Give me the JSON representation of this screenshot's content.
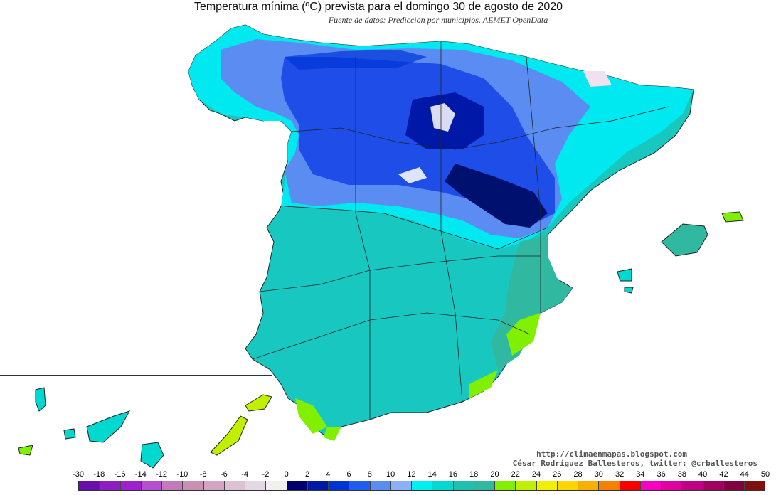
{
  "title": "Temperatura mínima (ºC) prevista para el domingo 30 de agosto de 2020",
  "subtitle": "Fuente de datos: Prediccion por municipios. AEMET OpenData",
  "credits": {
    "blog": "http://climaenmapas.blogspot.com",
    "author": "César Rodríguez Ballesteros, twitter: @crballesteros"
  },
  "legend": {
    "ticks": [
      "-30",
      "-18",
      "-16",
      "-14",
      "-12",
      "-10",
      "-8",
      "-6",
      "-4",
      "-2",
      "0",
      "2",
      "4",
      "6",
      "8",
      "10",
      "12",
      "14",
      "16",
      "18",
      "20",
      "22",
      "24",
      "26",
      "28",
      "30",
      "32",
      "34",
      "36",
      "38",
      "40",
      "42",
      "44",
      "50"
    ],
    "colors": [
      "#6a0dad",
      "#8b1fc4",
      "#a020d0",
      "#b34fd0",
      "#c47ab8",
      "#c98fb4",
      "#d4a4c4",
      "#dcc0d4",
      "#e4d8e4",
      "#f0f0f0",
      "#00006e",
      "#0018a8",
      "#0034d8",
      "#1f5cf0",
      "#5a8cf2",
      "#8ab0f8",
      "#00f0f0",
      "#00d8d0",
      "#20c0b0",
      "#30b8a0",
      "#80f000",
      "#c0f000",
      "#f0f000",
      "#f8d800",
      "#f8b000",
      "#f88000",
      "#f80000",
      "#f800c0",
      "#e000a0",
      "#c00080",
      "#a00060",
      "#800040",
      "#801010"
    ]
  },
  "map": {
    "region": "España peninsular, Baleares y Canarias",
    "dominant_colors": {
      "cold_north": "#0034d8",
      "meseta_south": "#00d8d0",
      "coast_warm": "#80f000",
      "highlands": "#00006e"
    }
  }
}
